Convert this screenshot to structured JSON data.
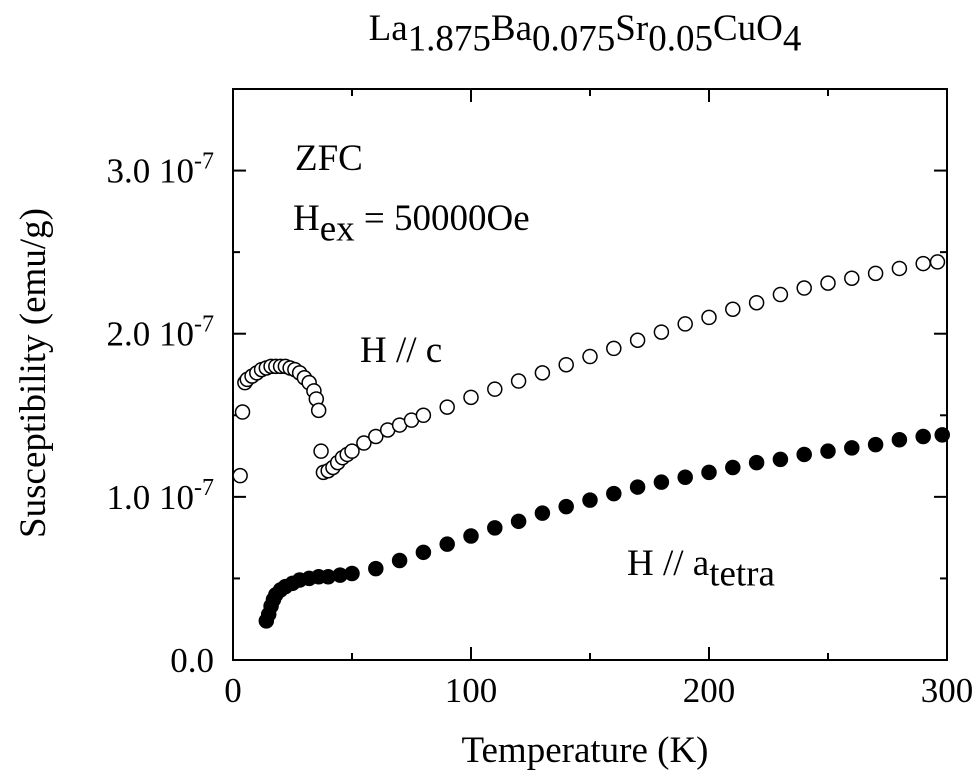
{
  "chart_data": {
    "type": "scatter",
    "title": {
      "parts": [
        {
          "t": "La",
          "sub": false
        },
        {
          "t": "1.875",
          "sub": true
        },
        {
          "t": "Ba",
          "sub": false
        },
        {
          "t": "0.075",
          "sub": true
        },
        {
          "t": "Sr",
          "sub": false
        },
        {
          "t": "0.05",
          "sub": true
        },
        {
          "t": "CuO",
          "sub": false
        },
        {
          "t": "4",
          "sub": true
        }
      ]
    },
    "xlabel": "Temperature (K)",
    "ylabel": "Susceptibility (emu/g)",
    "xlim": [
      0,
      300
    ],
    "ylim": [
      0,
      3.5e-07
    ],
    "x_ticks": [
      {
        "value": 0,
        "label": "0"
      },
      {
        "value": 100,
        "label": "100"
      },
      {
        "value": 200,
        "label": "200"
      },
      {
        "value": 300,
        "label": "300"
      }
    ],
    "y_ticks": [
      {
        "value": 0,
        "base": "0.0",
        "exp": ""
      },
      {
        "value": 1e-07,
        "base": "1.0 10",
        "exp": "-7"
      },
      {
        "value": 2e-07,
        "base": "2.0 10",
        "exp": "-7"
      },
      {
        "value": 3e-07,
        "base": "3.0 10",
        "exp": "-7"
      }
    ],
    "x_minor_step": 50,
    "y_minor_step": 5e-08,
    "annotations": {
      "condition": "ZFC",
      "field": {
        "parts": [
          {
            "t": "H",
            "sub": false
          },
          {
            "t": "ex",
            "sub": true
          },
          {
            "t": " = 50000Oe",
            "sub": false
          }
        ]
      },
      "series_c": {
        "parts": [
          {
            "t": "H // c",
            "sub": false
          }
        ]
      },
      "series_a": {
        "parts": [
          {
            "t": "H // a",
            "sub": false
          },
          {
            "t": "tetra",
            "sub": true
          }
        ]
      }
    },
    "grid": false,
    "legend": "none",
    "series": [
      {
        "marker": "open-circle",
        "x": [
          3,
          4,
          5,
          6,
          8,
          10,
          12,
          14,
          16,
          18,
          20,
          22,
          24,
          26,
          28,
          30,
          32,
          34,
          35,
          36,
          37,
          38,
          40,
          42,
          44,
          46,
          48,
          50,
          55,
          60,
          65,
          70,
          75,
          80,
          90,
          100,
          110,
          120,
          130,
          140,
          150,
          160,
          170,
          180,
          190,
          200,
          210,
          220,
          230,
          240,
          250,
          260,
          270,
          280,
          290,
          296
        ],
        "y": [
          1.13e-07,
          1.52e-07,
          1.7e-07,
          1.72e-07,
          1.74e-07,
          1.76e-07,
          1.78e-07,
          1.79e-07,
          1.8e-07,
          1.8e-07,
          1.8e-07,
          1.8e-07,
          1.79e-07,
          1.78e-07,
          1.76e-07,
          1.73e-07,
          1.7e-07,
          1.65e-07,
          1.6e-07,
          1.53e-07,
          1.28e-07,
          1.15e-07,
          1.16e-07,
          1.18e-07,
          1.21e-07,
          1.24e-07,
          1.26e-07,
          1.28e-07,
          1.33e-07,
          1.37e-07,
          1.41e-07,
          1.44e-07,
          1.47e-07,
          1.5e-07,
          1.55e-07,
          1.61e-07,
          1.66e-07,
          1.71e-07,
          1.76e-07,
          1.81e-07,
          1.86e-07,
          1.91e-07,
          1.96e-07,
          2.01e-07,
          2.06e-07,
          2.1e-07,
          2.15e-07,
          2.19e-07,
          2.24e-07,
          2.28e-07,
          2.31e-07,
          2.34e-07,
          2.37e-07,
          2.4e-07,
          2.43e-07,
          2.44e-07
        ]
      },
      {
        "marker": "filled-circle",
        "x": [
          14,
          15,
          16,
          17,
          18,
          20,
          22,
          25,
          28,
          32,
          36,
          40,
          45,
          50,
          60,
          70,
          80,
          90,
          100,
          110,
          120,
          130,
          140,
          150,
          160,
          170,
          180,
          190,
          200,
          210,
          220,
          230,
          240,
          250,
          260,
          270,
          280,
          290,
          298
        ],
        "y": [
          2.4e-08,
          2.8e-08,
          3.3e-08,
          3.7e-08,
          4e-08,
          4.3e-08,
          4.5e-08,
          4.7e-08,
          4.9e-08,
          5e-08,
          5.1e-08,
          5.1e-08,
          5.2e-08,
          5.3e-08,
          5.6e-08,
          6.1e-08,
          6.6e-08,
          7.1e-08,
          7.6e-08,
          8.1e-08,
          8.5e-08,
          9e-08,
          9.4e-08,
          9.8e-08,
          1.02e-07,
          1.06e-07,
          1.09e-07,
          1.12e-07,
          1.15e-07,
          1.18e-07,
          1.21e-07,
          1.23e-07,
          1.26e-07,
          1.28e-07,
          1.3e-07,
          1.32e-07,
          1.35e-07,
          1.37e-07,
          1.38e-07
        ]
      }
    ]
  }
}
